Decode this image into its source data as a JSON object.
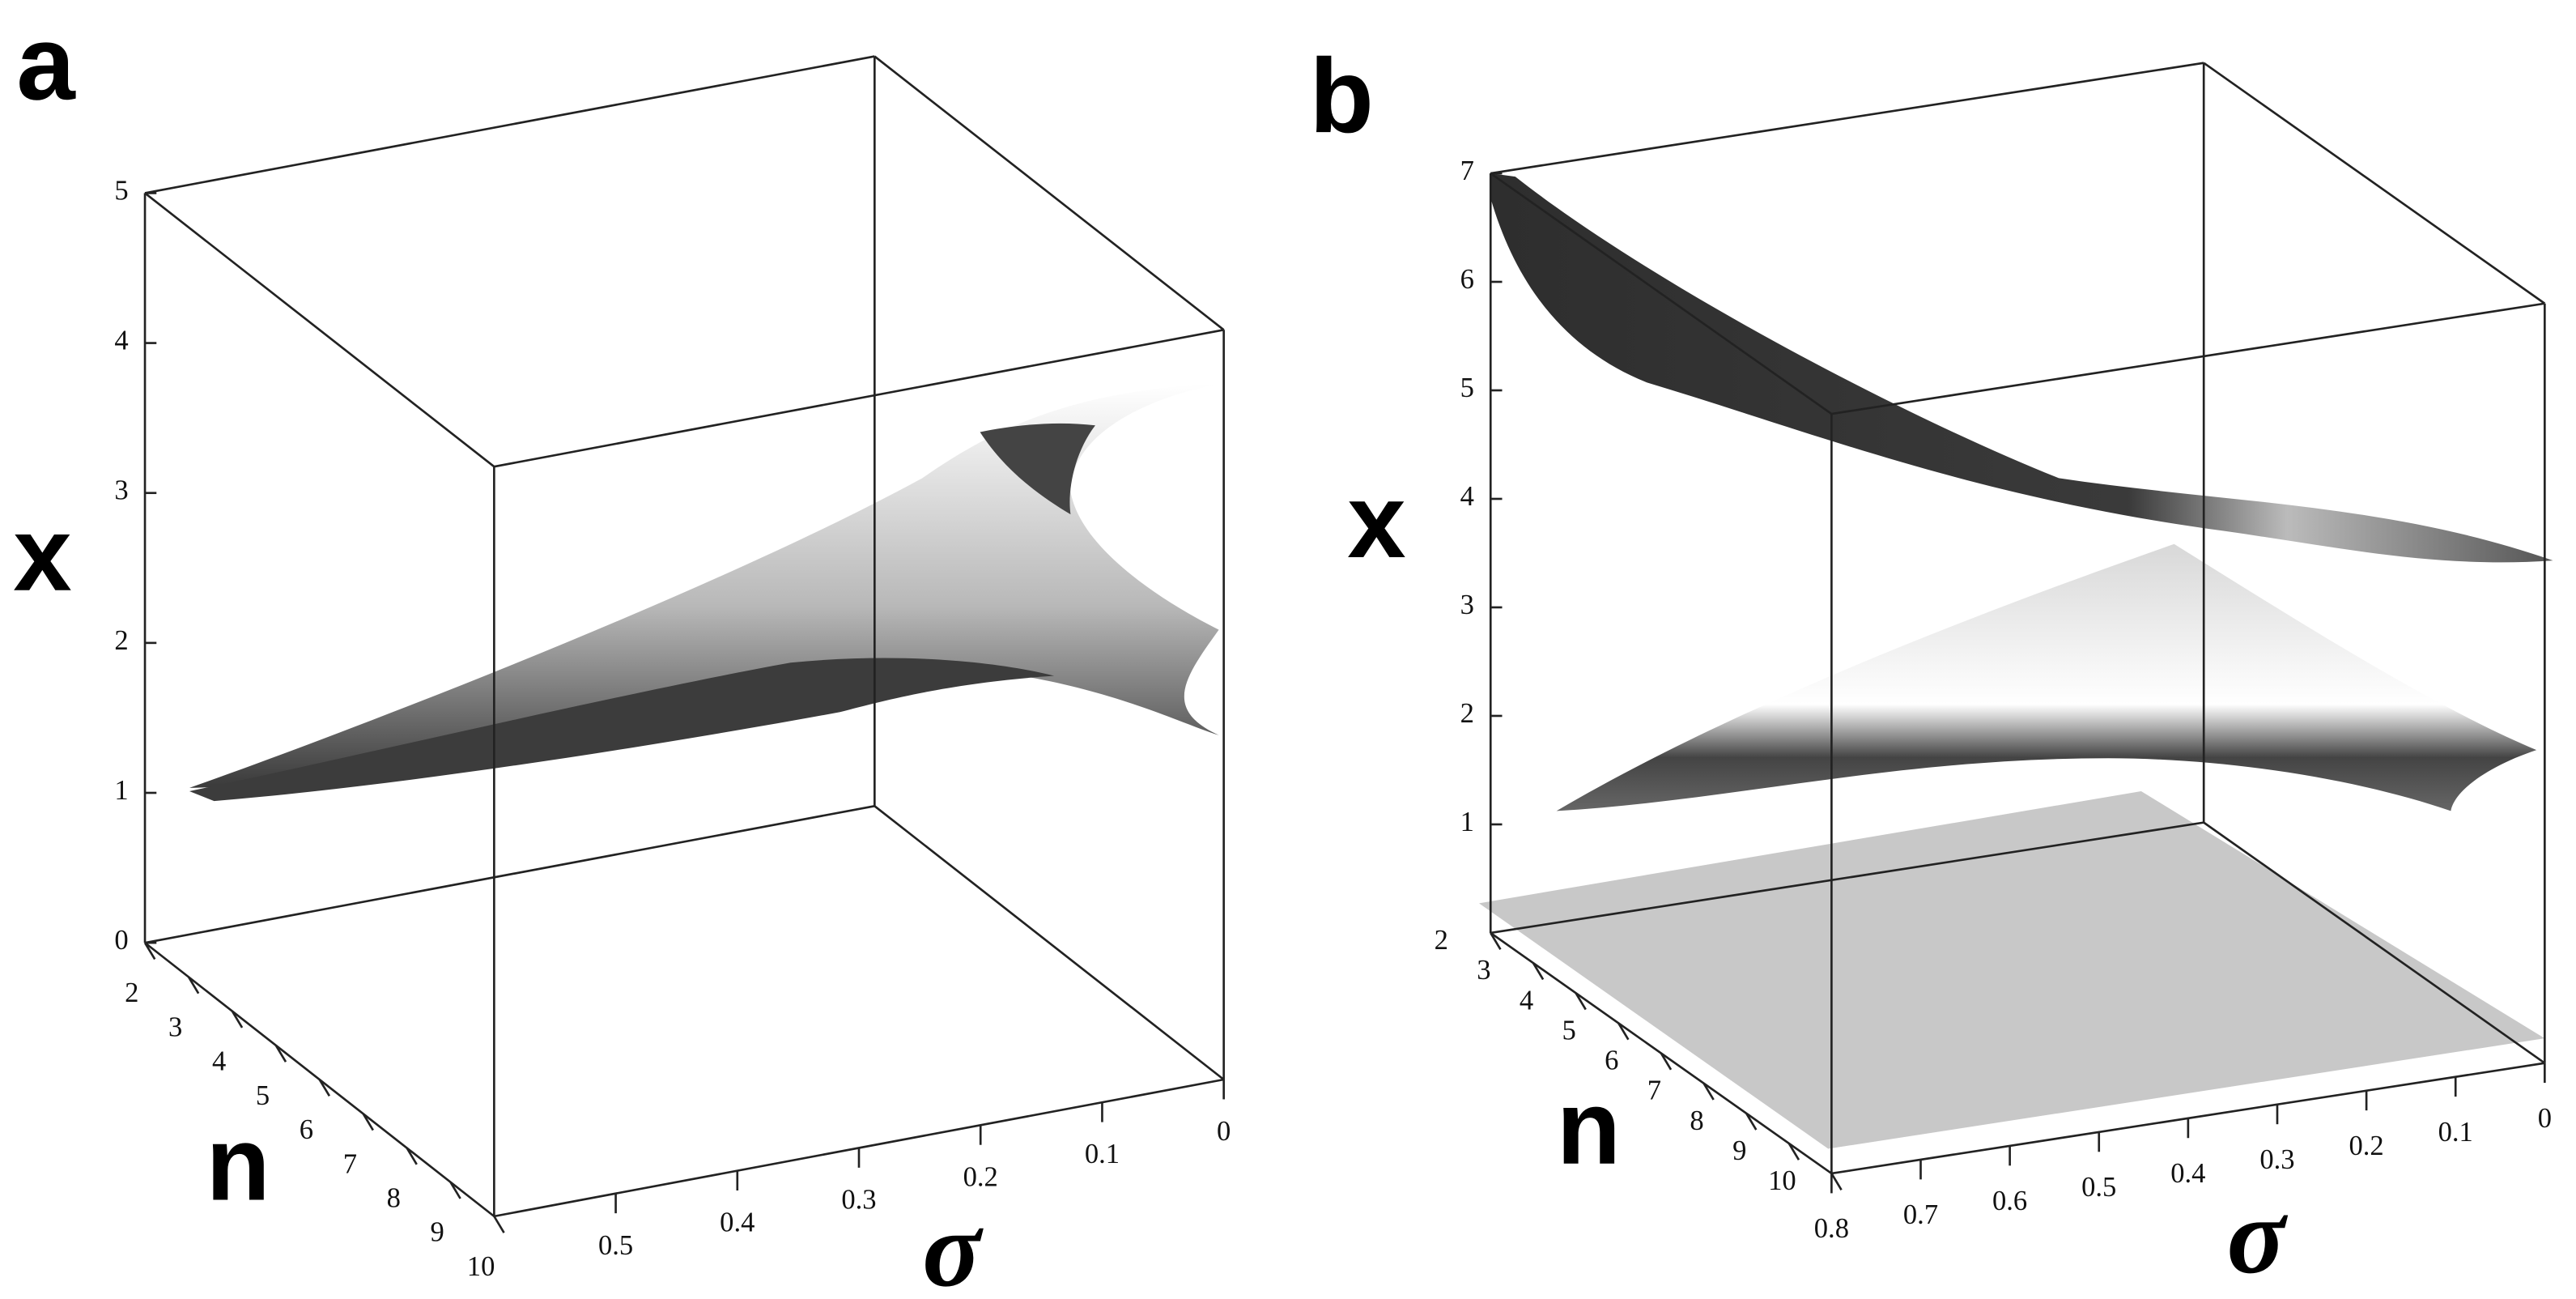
{
  "chart_data": [
    {
      "type": "surface",
      "title": "a",
      "zlabel": "x",
      "ylabel": "n",
      "xlabel": "σ",
      "zlim": [
        0,
        5
      ],
      "zticks": [
        0,
        1,
        2,
        3,
        4,
        5
      ],
      "ylim": [
        2,
        10
      ],
      "yticks": [
        2,
        3,
        4,
        5,
        6,
        7,
        8,
        9,
        10
      ],
      "xlim": [
        0,
        0.6
      ],
      "xticks": [
        0,
        0.1,
        0.2,
        0.3,
        0.4,
        0.5
      ]
    },
    {
      "type": "surface",
      "title": "b",
      "zlabel": "x",
      "ylabel": "n",
      "xlabel": "σ",
      "zlim": [
        0,
        7
      ],
      "zticks": [
        1,
        2,
        3,
        4,
        5,
        6,
        7
      ],
      "ylim": [
        2,
        10
      ],
      "yticks": [
        2,
        3,
        4,
        5,
        6,
        7,
        8,
        9,
        10
      ],
      "xlim": [
        0,
        0.8
      ],
      "xticks": [
        0,
        0.1,
        0.2,
        0.3,
        0.4,
        0.5,
        0.6,
        0.7,
        0.8
      ]
    }
  ]
}
